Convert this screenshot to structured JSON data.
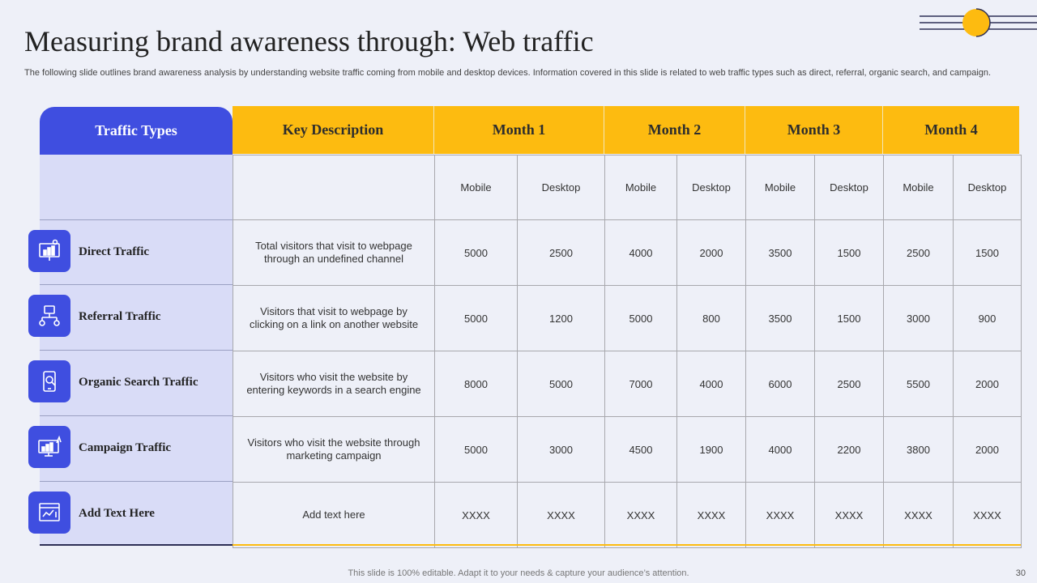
{
  "slide": {
    "title": "Measuring brand awareness through: Web traffic",
    "subtitle": "The following slide outlines brand awareness analysis by understanding website traffic coming from mobile and desktop devices. Information covered in this slide is related to web traffic types such as direct, referral, organic search, and campaign.",
    "footer": "This slide is 100% editable. Adapt it to your needs & capture your audience’s attention.",
    "page_number": "30"
  },
  "colors": {
    "accent_blue": "#3f4ee0",
    "accent_yellow": "#fdbb10",
    "panel": "#d9dcf7",
    "background": "#eef0f8"
  },
  "table": {
    "header": {
      "traffic_types": "Traffic Types",
      "key_description": "Key Description",
      "months": [
        "Month 1",
        "Month 2",
        "Month 3",
        "Month 4"
      ]
    },
    "sub_headers": [
      "Mobile",
      "Desktop",
      "Mobile",
      "Desktop",
      "Mobile",
      "Desktop",
      "Mobile",
      "Desktop"
    ],
    "rows": [
      {
        "type": "Direct Traffic",
        "icon": "analytics-presentation-icon",
        "description": "Total visitors that visit to webpage through an undefined channel",
        "values": [
          "5000",
          "2500",
          "4000",
          "2000",
          "3500",
          "1500",
          "2500",
          "1500"
        ]
      },
      {
        "type": "Referral Traffic",
        "icon": "network-hierarchy-icon",
        "description": "Visitors that visit to webpage  by clicking on a link on another website",
        "values": [
          "5000",
          "1200",
          "5000",
          "800",
          "3500",
          "1500",
          "3000",
          "900"
        ]
      },
      {
        "type": "Organic  Search Traffic",
        "icon": "mobile-search-icon",
        "description": "Visitors who visit the website by entering keywords in a search engine",
        "values": [
          "8000",
          "5000",
          "7000",
          "4000",
          "6000",
          "2500",
          "5500",
          "2000"
        ]
      },
      {
        "type": "Campaign  Traffic",
        "icon": "growth-chart-monitor-icon",
        "description": "Visitors who visit the website through marketing campaign",
        "values": [
          "5000",
          "3000",
          "4500",
          "1900",
          "4000",
          "2200",
          "3800",
          "2000"
        ]
      },
      {
        "type": "Add Text Here",
        "icon": "browser-chart-icon",
        "description": "Add text here",
        "values": [
          "XXXX",
          "XXXX",
          "XXXX",
          "XXXX",
          "XXXX",
          "XXXX",
          "XXXX",
          "XXXX"
        ]
      }
    ]
  }
}
